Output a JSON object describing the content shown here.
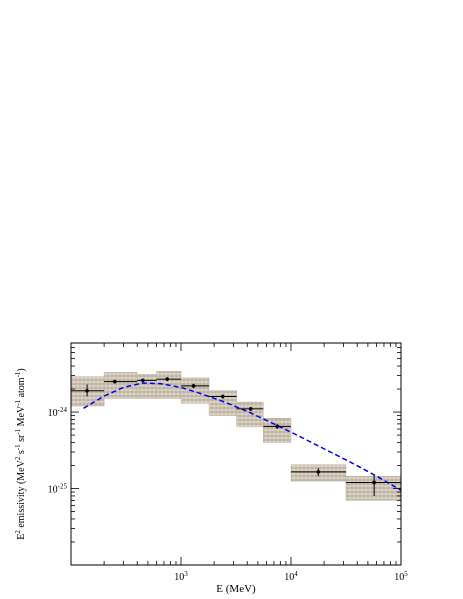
{
  "chart_data": {
    "type": "scatter",
    "title": "",
    "xlabel": "E (MeV)",
    "ylabel_parts": {
      "base": "E",
      "base_sup": "2",
      "mid": " emissivity (MeV",
      "mid_sup": "2",
      "s": " s",
      "s_sup": "-1",
      "sr": " sr",
      "sr_sup": "-1",
      "mev": " MeV",
      "mev_sup": "-1",
      "atom": " atom",
      "atom_sup": "-1",
      "end": ")"
    },
    "x_scale": "log",
    "y_scale": "log",
    "xlim": [
      100,
      100000
    ],
    "ylim": [
      1e-26,
      8e-24
    ],
    "grid": false,
    "x_ticks": [
      {
        "value": 1000,
        "base": "10",
        "exp": "3"
      },
      {
        "value": 10000,
        "base": "10",
        "exp": "4"
      },
      {
        "value": 100000,
        "base": "10",
        "exp": "5"
      }
    ],
    "y_ticks": [
      {
        "value": 1e-25,
        "base": "10",
        "exp": "-25"
      },
      {
        "value": 1e-24,
        "base": "10",
        "exp": "-24"
      }
    ],
    "points": [
      {
        "x": 140,
        "xlo": 100,
        "xhi": 200,
        "y": 1.9e-24,
        "ylo": 1.6e-24,
        "yhi": 2.3e-24,
        "sys_lo": 1.2e-24,
        "sys_hi": 2.9e-24
      },
      {
        "x": 250,
        "xlo": 200,
        "xhi": 400,
        "y": 2.5e-24,
        "ylo": 2.35e-24,
        "yhi": 2.65e-24,
        "sys_lo": 1.5e-24,
        "sys_hi": 3.3e-24
      },
      {
        "x": 450,
        "xlo": 400,
        "xhi": 600,
        "y": 2.6e-24,
        "ylo": 2.45e-24,
        "yhi": 2.75e-24,
        "sys_lo": 1.5e-24,
        "sys_hi": 3.1e-24
      },
      {
        "x": 750,
        "xlo": 600,
        "xhi": 1000,
        "y": 2.7e-24,
        "ylo": 2.55e-24,
        "yhi": 2.85e-24,
        "sys_lo": 1.5e-24,
        "sys_hi": 3.4e-24
      },
      {
        "x": 1300,
        "xlo": 1000,
        "xhi": 1800,
        "y": 2.2e-24,
        "ylo": 2.05e-24,
        "yhi": 2.35e-24,
        "sys_lo": 1.3e-24,
        "sys_hi": 2.8e-24
      },
      {
        "x": 2400,
        "xlo": 1800,
        "xhi": 3200,
        "y": 1.6e-24,
        "ylo": 1.5e-24,
        "yhi": 1.7e-24,
        "sys_lo": 9e-25,
        "sys_hi": 1.9e-24
      },
      {
        "x": 4300,
        "xlo": 3200,
        "xhi": 5600,
        "y": 1.1e-24,
        "ylo": 1.03e-24,
        "yhi": 1.17e-24,
        "sys_lo": 6.4e-25,
        "sys_hi": 1.35e-24
      },
      {
        "x": 7500,
        "xlo": 5600,
        "xhi": 10000,
        "y": 6.5e-25,
        "ylo": 6e-25,
        "yhi": 7e-25,
        "sys_lo": 4e-25,
        "sys_hi": 8.3e-25
      },
      {
        "x": 17700,
        "xlo": 10000,
        "xhi": 31600,
        "y": 1.65e-25,
        "ylo": 1.45e-25,
        "yhi": 1.85e-25,
        "sys_lo": 1.25e-25,
        "sys_hi": 2.05e-25
      },
      {
        "x": 57000,
        "xlo": 31600,
        "xhi": 100000,
        "y": 1.2e-25,
        "ylo": 8e-26,
        "yhi": 1.5e-25,
        "sys_lo": 7e-26,
        "sys_hi": 1.45e-25
      }
    ],
    "model_curve": {
      "style": "dashed",
      "color": "#0000ee",
      "points": [
        {
          "x": 130,
          "y": 1.12e-24
        },
        {
          "x": 200,
          "y": 1.62e-24
        },
        {
          "x": 300,
          "y": 2.1e-24
        },
        {
          "x": 450,
          "y": 2.4e-24
        },
        {
          "x": 650,
          "y": 2.35e-24
        },
        {
          "x": 1000,
          "y": 2.1e-24
        },
        {
          "x": 1500,
          "y": 1.75e-24
        },
        {
          "x": 2500,
          "y": 1.35e-24
        },
        {
          "x": 4000,
          "y": 1.02e-24
        },
        {
          "x": 7000,
          "y": 7e-25
        },
        {
          "x": 12000,
          "y": 4.8e-25
        },
        {
          "x": 20000,
          "y": 3.3e-25
        },
        {
          "x": 35000,
          "y": 2.2e-25
        },
        {
          "x": 60000,
          "y": 1.45e-25
        },
        {
          "x": 100000,
          "y": 9.5e-26
        }
      ]
    },
    "colors": {
      "sys_band": "#bcb1a0",
      "sys_grid": "#e8e2d8",
      "points": "#000000",
      "axes": "#000000"
    }
  }
}
